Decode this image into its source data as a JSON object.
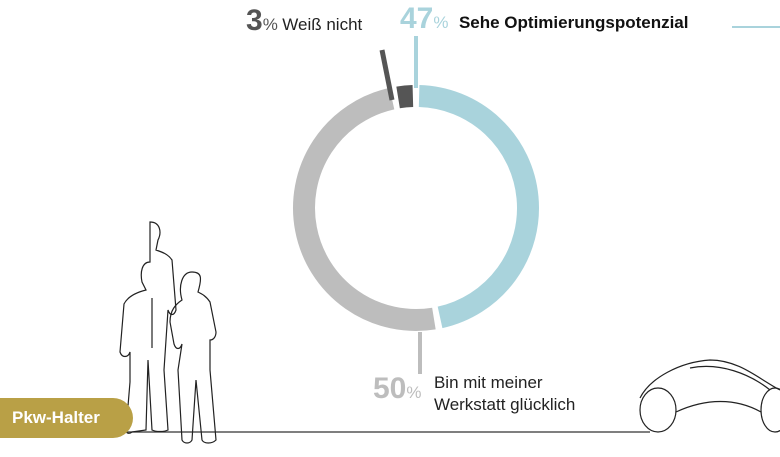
{
  "chart_data": {
    "type": "pie",
    "donut": true,
    "slices": [
      {
        "label": "Sehe Optimierungspotenzial",
        "value": 47,
        "pct_label": "47",
        "color": "#a9d3dc"
      },
      {
        "label": "Bin mit meiner Werkstatt glücklich",
        "label_lines": [
          "Bin mit meiner",
          "Werkstatt glücklich"
        ],
        "value": 50,
        "pct_label": "50",
        "color": "#bdbdbd"
      },
      {
        "label": "Weiß nicht",
        "value": 3,
        "pct_label": "3",
        "color": "#555555"
      }
    ],
    "percent_sign": "%"
  },
  "group_label": "Pkw-Halter",
  "accent_color": "#b9a046"
}
